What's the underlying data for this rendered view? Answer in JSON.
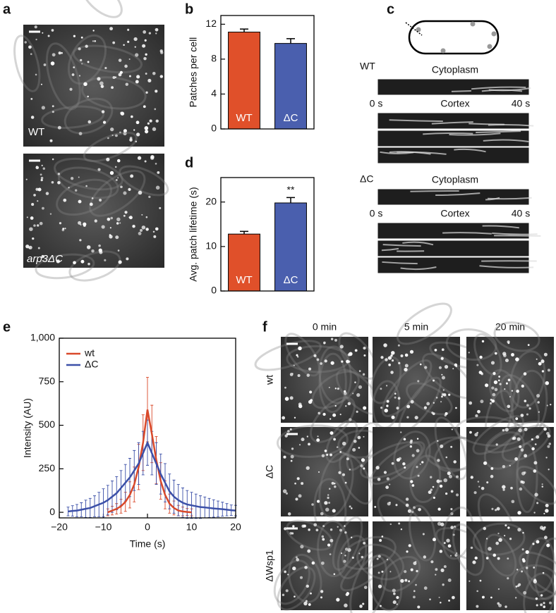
{
  "panel_letters": [
    "a",
    "b",
    "c",
    "d",
    "e",
    "f"
  ],
  "panel_a": {
    "image_labels": [
      "WT",
      "arp3ΔC"
    ]
  },
  "panel_c": {
    "groups": [
      {
        "label": "WT",
        "top": "Cytoplasm",
        "start": "0 s",
        "middle": "Cortex",
        "end": "40 s"
      },
      {
        "label": "ΔC",
        "top": "Cytoplasm",
        "start": "0 s",
        "middle": "Cortex",
        "end": "40 s"
      }
    ]
  },
  "panel_f": {
    "columns": [
      "0 min",
      "5 min",
      "20 min"
    ],
    "rows": [
      "wt",
      "ΔC",
      "ΔWsp1"
    ]
  },
  "chart_data": [
    {
      "type": "bar",
      "ylabel": "Patches per cell",
      "categories": [
        "WT",
        "ΔC"
      ],
      "values": [
        11.1,
        9.8
      ],
      "errors": [
        0.35,
        0.55
      ],
      "colors": [
        "#e0502a",
        "#4a5fae"
      ],
      "ylim": [
        0,
        13
      ],
      "yticks": [
        0,
        4,
        8,
        12
      ]
    },
    {
      "type": "bar",
      "ylabel": "Avg. patch lifetime (s)",
      "categories": [
        "WT",
        "ΔC"
      ],
      "values": [
        12.8,
        19.8
      ],
      "errors": [
        0.6,
        1.2
      ],
      "colors": [
        "#e0502a",
        "#4a5fae"
      ],
      "ylim": [
        0,
        25.5
      ],
      "yticks": [
        0,
        10,
        20
      ],
      "annotation": "**"
    },
    {
      "type": "line",
      "xlabel": "Time (s)",
      "ylabel": "Intensity (AU)",
      "xlim": [
        -20,
        20
      ],
      "xticks": [
        {
          "value": -20,
          "label": "−20"
        },
        {
          "value": -10,
          "label": "−10"
        },
        0,
        10,
        20
      ],
      "ylim": [
        -32,
        1000
      ],
      "yticks": [
        0,
        250,
        500,
        750,
        {
          "value": 1000,
          "label": "1,000"
        }
      ],
      "series": [
        {
          "name": "wt",
          "color": "#d9492a",
          "x": [
            -9,
            -8,
            -7,
            -6,
            -5,
            -4,
            -3,
            -2,
            -1,
            0,
            1,
            2,
            3,
            4,
            5,
            6,
            7,
            8,
            9,
            10
          ],
          "values": [
            0,
            10,
            20,
            35,
            60,
            100,
            160,
            260,
            400,
            590,
            450,
            300,
            180,
            100,
            50,
            25,
            10,
            5,
            2,
            0
          ],
          "errors": [
            20,
            25,
            30,
            40,
            55,
            75,
            100,
            130,
            160,
            185,
            165,
            135,
            105,
            80,
            55,
            40,
            30,
            25,
            20,
            20
          ]
        },
        {
          "name": "ΔC",
          "color": "#3c50a8",
          "x": [
            -18,
            -17,
            -16,
            -15,
            -14,
            -13,
            -12,
            -11,
            -10,
            -9,
            -8,
            -7,
            -6,
            -5,
            -4,
            -3,
            -2,
            -1,
            0,
            1,
            2,
            3,
            4,
            5,
            6,
            7,
            8,
            9,
            10,
            11,
            12,
            13,
            14,
            15,
            16,
            17,
            18,
            19,
            20
          ],
          "values": [
            5,
            8,
            10,
            15,
            20,
            25,
            35,
            45,
            55,
            70,
            90,
            110,
            140,
            170,
            200,
            240,
            280,
            340,
            400,
            340,
            280,
            220,
            170,
            120,
            90,
            70,
            55,
            45,
            40,
            35,
            30,
            28,
            25,
            22,
            20,
            18,
            15,
            12,
            10
          ],
          "errors": [
            25,
            30,
            35,
            40,
            50,
            55,
            60,
            70,
            80,
            85,
            90,
            95,
            100,
            105,
            110,
            115,
            120,
            125,
            130,
            125,
            120,
            115,
            110,
            100,
            95,
            90,
            85,
            80,
            75,
            70,
            65,
            60,
            55,
            50,
            45,
            40,
            35,
            30,
            30
          ]
        }
      ]
    }
  ]
}
